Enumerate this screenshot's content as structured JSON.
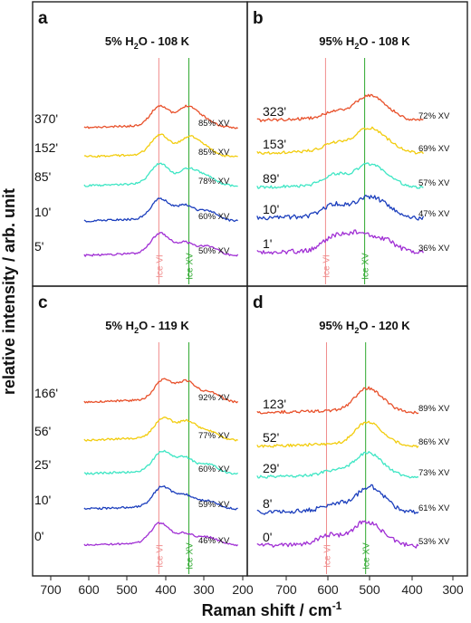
{
  "figure": {
    "ylabel": "relative intensity / arb. unit",
    "xlabel": "Raman shift / cm",
    "xlabel_sup": "-1",
    "xticks": [
      "700",
      "600",
      "500",
      "400",
      "300",
      "200",
      "700",
      "600",
      "500",
      "400",
      "300"
    ],
    "colors": {
      "red": "#e8502a",
      "yellow": "#f2cc0c",
      "cyan": "#3ee6c4",
      "blue": "#1c3fbd",
      "purple": "#a02fd4",
      "ice_vi": "#f08c8c",
      "ice_xv": "#2ea82e"
    }
  },
  "chart_data": [
    {
      "type": "line",
      "panel": "a",
      "title": "5% H2O - 108 K",
      "title_parts": [
        "5% H",
        "2",
        "O - 108 K"
      ],
      "xlim": [
        700,
        200
      ],
      "markers": [
        {
          "name": "Ice VI",
          "x": 406
        },
        {
          "name": "Ice XV",
          "x": 336
        }
      ],
      "series": [
        {
          "name": "370'",
          "percent": "85% XV",
          "color": "red",
          "x0": 580,
          "x1": 222,
          "peaks": [
            [
              403,
              1.0
            ],
            [
              340,
              0.95
            ],
            [
              300,
              0.35
            ]
          ],
          "seed": 11
        },
        {
          "name": "152'",
          "percent": "85% XV",
          "color": "yellow",
          "x0": 580,
          "x1": 222,
          "peaks": [
            [
              403,
              1.0
            ],
            [
              338,
              0.85
            ],
            [
              300,
              0.4
            ]
          ],
          "seed": 23
        },
        {
          "name": "85'",
          "percent": "78% XV",
          "color": "cyan",
          "x0": 580,
          "x1": 222,
          "peaks": [
            [
              403,
              1.0
            ],
            [
              338,
              0.75
            ],
            [
              295,
              0.4
            ]
          ],
          "seed": 37
        },
        {
          "name": "10'",
          "percent": "60% XV",
          "color": "blue",
          "x0": 580,
          "x1": 222,
          "peaks": [
            [
              403,
              1.0
            ],
            [
              345,
              0.7
            ],
            [
              290,
              0.45
            ]
          ],
          "seed": 41
        },
        {
          "name": "5'",
          "percent": "50% XV",
          "color": "purple",
          "x0": 580,
          "x1": 222,
          "peaks": [
            [
              403,
              1.0
            ],
            [
              345,
              0.55
            ],
            [
              290,
              0.4
            ]
          ],
          "seed": 53
        }
      ]
    },
    {
      "type": "line",
      "panel": "b",
      "title": "95% H2O - 108 K",
      "title_parts": [
        "95% H",
        "2",
        "O - 108 K"
      ],
      "xlim": [
        700,
        250
      ],
      "markers": [
        {
          "name": "Ice VI",
          "x": 540
        },
        {
          "name": "Ice XV",
          "x": 460
        }
      ],
      "series": [
        {
          "name": "323'",
          "percent": "72% XV",
          "color": "red",
          "x0": 680,
          "x1": 340,
          "peaks": [
            [
              458,
              1.0
            ],
            [
              420,
              0.5
            ],
            [
              520,
              0.35
            ]
          ],
          "seed": 61
        },
        {
          "name": "153'",
          "percent": "69% XV",
          "color": "yellow",
          "x0": 680,
          "x1": 340,
          "peaks": [
            [
              458,
              1.0
            ],
            [
              420,
              0.5
            ],
            [
              520,
              0.4
            ]
          ],
          "seed": 73
        },
        {
          "name": "89'",
          "percent": "57% XV",
          "color": "cyan",
          "x0": 680,
          "x1": 340,
          "peaks": [
            [
              458,
              0.9
            ],
            [
              420,
              0.5
            ],
            [
              520,
              0.55
            ]
          ],
          "seed": 83
        },
        {
          "name": "10'",
          "percent": "47% XV",
          "color": "blue",
          "x0": 680,
          "x1": 340,
          "peaks": [
            [
              458,
              0.8
            ],
            [
              420,
              0.5
            ],
            [
              520,
              0.6
            ]
          ],
          "seed": 97
        },
        {
          "name": "1'",
          "percent": "36% XV",
          "color": "purple",
          "x0": 680,
          "x1": 340,
          "peaks": [
            [
              470,
              0.8
            ],
            [
              420,
              0.55
            ],
            [
              520,
              0.7
            ]
          ],
          "seed": 101
        }
      ]
    },
    {
      "type": "line",
      "panel": "c",
      "title": "5% H2O - 119 K",
      "title_parts": [
        "5% H",
        "2",
        "O - 119 K"
      ],
      "xlim": [
        700,
        200
      ],
      "markers": [
        {
          "name": "Ice VI",
          "x": 406
        },
        {
          "name": "Ice XV",
          "x": 336
        }
      ],
      "series": [
        {
          "name": "166'",
          "percent": "92% XV",
          "color": "red",
          "x0": 580,
          "x1": 222,
          "peaks": [
            [
              395,
              1.0
            ],
            [
              340,
              0.95
            ],
            [
              285,
              0.45
            ]
          ],
          "seed": 113
        },
        {
          "name": "56'",
          "percent": "77% XV",
          "color": "yellow",
          "x0": 580,
          "x1": 222,
          "peaks": [
            [
              395,
              1.0
            ],
            [
              340,
              0.85
            ],
            [
              290,
              0.4
            ]
          ],
          "seed": 127
        },
        {
          "name": "25'",
          "percent": "60% XV",
          "color": "cyan",
          "x0": 580,
          "x1": 222,
          "peaks": [
            [
              398,
              1.0
            ],
            [
              345,
              0.7
            ],
            [
              290,
              0.4
            ]
          ],
          "seed": 131
        },
        {
          "name": "10'",
          "percent": "59% XV",
          "color": "blue",
          "x0": 580,
          "x1": 222,
          "peaks": [
            [
              398,
              1.0
            ],
            [
              345,
              0.6
            ],
            [
              290,
              0.35
            ]
          ],
          "seed": 149
        },
        {
          "name": "0'",
          "percent": "46% XV",
          "color": "purple",
          "x0": 580,
          "x1": 222,
          "peaks": [
            [
              403,
              1.0
            ],
            [
              345,
              0.5
            ],
            [
              290,
              0.35
            ]
          ],
          "seed": 157
        }
      ]
    },
    {
      "type": "line",
      "panel": "d",
      "title": "95% H2O - 120 K",
      "title_parts": [
        "95% H",
        "2",
        "O - 120 K"
      ],
      "xlim": [
        700,
        250
      ],
      "markers": [
        {
          "name": "Ice VI",
          "x": 538
        },
        {
          "name": "Ice XV",
          "x": 458
        }
      ],
      "series": [
        {
          "name": "123'",
          "percent": "89% XV",
          "color": "red",
          "x0": 680,
          "x1": 350,
          "peaks": [
            [
              458,
              1.0
            ],
            [
              425,
              0.35
            ]
          ],
          "seed": 163
        },
        {
          "name": "52'",
          "percent": "86% XV",
          "color": "yellow",
          "x0": 680,
          "x1": 350,
          "peaks": [
            [
              458,
              1.0
            ],
            [
              425,
              0.35
            ]
          ],
          "seed": 173
        },
        {
          "name": "29'",
          "percent": "73% XV",
          "color": "cyan",
          "x0": 680,
          "x1": 350,
          "peaks": [
            [
              458,
              1.0
            ],
            [
              425,
              0.35
            ],
            [
              520,
              0.25
            ]
          ],
          "seed": 181
        },
        {
          "name": "8'",
          "percent": "61% XV",
          "color": "blue",
          "x0": 680,
          "x1": 350,
          "peaks": [
            [
              455,
              1.0
            ],
            [
              425,
              0.4
            ],
            [
              520,
              0.35
            ]
          ],
          "seed": 191
        },
        {
          "name": "0'",
          "percent": "53% XV",
          "color": "purple",
          "x0": 680,
          "x1": 350,
          "peaks": [
            [
              462,
              1.0
            ],
            [
              425,
              0.4
            ],
            [
              530,
              0.45
            ]
          ],
          "seed": 199
        }
      ]
    }
  ]
}
